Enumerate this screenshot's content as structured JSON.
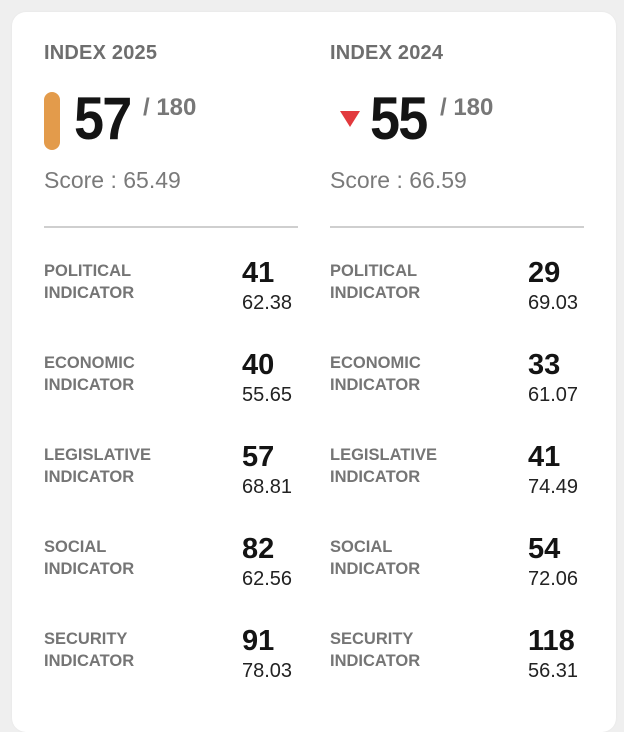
{
  "colors": {
    "rank_2025_bar": "#e39b4b",
    "decline_arrow": "#e2393d"
  },
  "index_2025": {
    "title": "INDEX 2025",
    "rank": "57",
    "total": "/ 180",
    "score": "Score : 65.49",
    "indicators": [
      {
        "label": "POLITICAL INDICATOR",
        "rank": "41",
        "score": "62.38"
      },
      {
        "label": "ECONOMIC INDICATOR",
        "rank": "40",
        "score": "55.65"
      },
      {
        "label": "LEGISLATIVE INDICATOR",
        "rank": "57",
        "score": "68.81"
      },
      {
        "label": "SOCIAL INDICATOR",
        "rank": "82",
        "score": "62.56"
      },
      {
        "label": "SECURITY INDICATOR",
        "rank": "91",
        "score": "78.03"
      }
    ]
  },
  "index_2024": {
    "title": "INDEX 2024",
    "rank": "55",
    "total": "/ 180",
    "score": "Score : 66.59",
    "trend_icon": "down-triangle-icon",
    "indicators": [
      {
        "label": "POLITICAL INDICATOR",
        "rank": "29",
        "score": "69.03"
      },
      {
        "label": "ECONOMIC INDICATOR",
        "rank": "33",
        "score": "61.07"
      },
      {
        "label": "LEGISLATIVE INDICATOR",
        "rank": "41",
        "score": "74.49"
      },
      {
        "label": "SOCIAL INDICATOR",
        "rank": "54",
        "score": "72.06"
      },
      {
        "label": "SECURITY INDICATOR",
        "rank": "118",
        "score": "56.31"
      }
    ]
  }
}
